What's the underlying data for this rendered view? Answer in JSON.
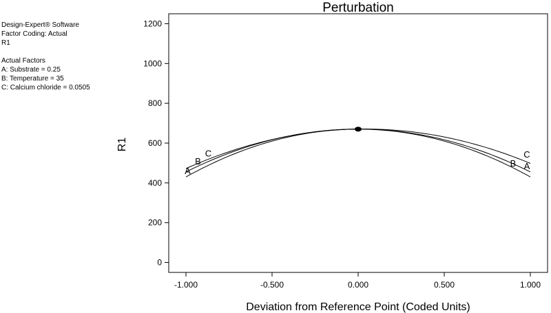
{
  "info_panel": {
    "software": "Design-Expert® Software",
    "factor_coding": "Factor Coding: Actual",
    "response": "R1",
    "actual_factors_heading": "Actual Factors",
    "factors": [
      "A: Substrate = 0.25",
      "B: Temperature = 35",
      "C: Calcium chloride = 0.0505"
    ]
  },
  "chart_data": {
    "type": "line",
    "title": "Perturbation",
    "xlabel": "Deviation from Reference Point (Coded Units)",
    "ylabel": "R1",
    "xlim": [
      -1.1,
      1.1
    ],
    "ylim": [
      -50,
      1250
    ],
    "x_ticks": [
      -1.0,
      -0.5,
      0.0,
      0.5,
      1.0
    ],
    "x_tick_labels": [
      "-1.000",
      "-0.500",
      "0.000",
      "0.500",
      "1.000"
    ],
    "y_ticks": [
      0,
      200,
      400,
      600,
      800,
      1000,
      1200
    ],
    "y_tick_labels": [
      "0",
      "200",
      "400",
      "600",
      "800",
      "1000",
      "1200"
    ],
    "reference_point": {
      "x": 0.0,
      "y": 670
    },
    "series": [
      {
        "name": "A",
        "x": [
          -1.0,
          -0.5,
          0.0,
          0.5,
          1.0
        ],
        "y": [
          430,
          610,
          670,
          610,
          430
        ]
      },
      {
        "name": "B",
        "x": [
          -1.0,
          -0.5,
          0.0,
          0.5,
          1.0
        ],
        "y": [
          455,
          617,
          670,
          617,
          455
        ]
      },
      {
        "name": "C",
        "x": [
          -1.0,
          -0.5,
          0.0,
          0.5,
          1.0
        ],
        "y": [
          470,
          622,
          670,
          627,
          500
        ]
      }
    ],
    "series_labels": {
      "left": [
        {
          "name": "A",
          "x": -0.99,
          "y": 445
        },
        {
          "name": "B",
          "x": -0.93,
          "y": 492
        },
        {
          "name": "C",
          "x": -0.87,
          "y": 532
        }
      ],
      "right": [
        {
          "name": "C",
          "x": 0.98,
          "y": 528
        },
        {
          "name": "B",
          "x": 0.9,
          "y": 483
        },
        {
          "name": "A",
          "x": 0.98,
          "y": 468
        }
      ]
    },
    "grid": false
  }
}
